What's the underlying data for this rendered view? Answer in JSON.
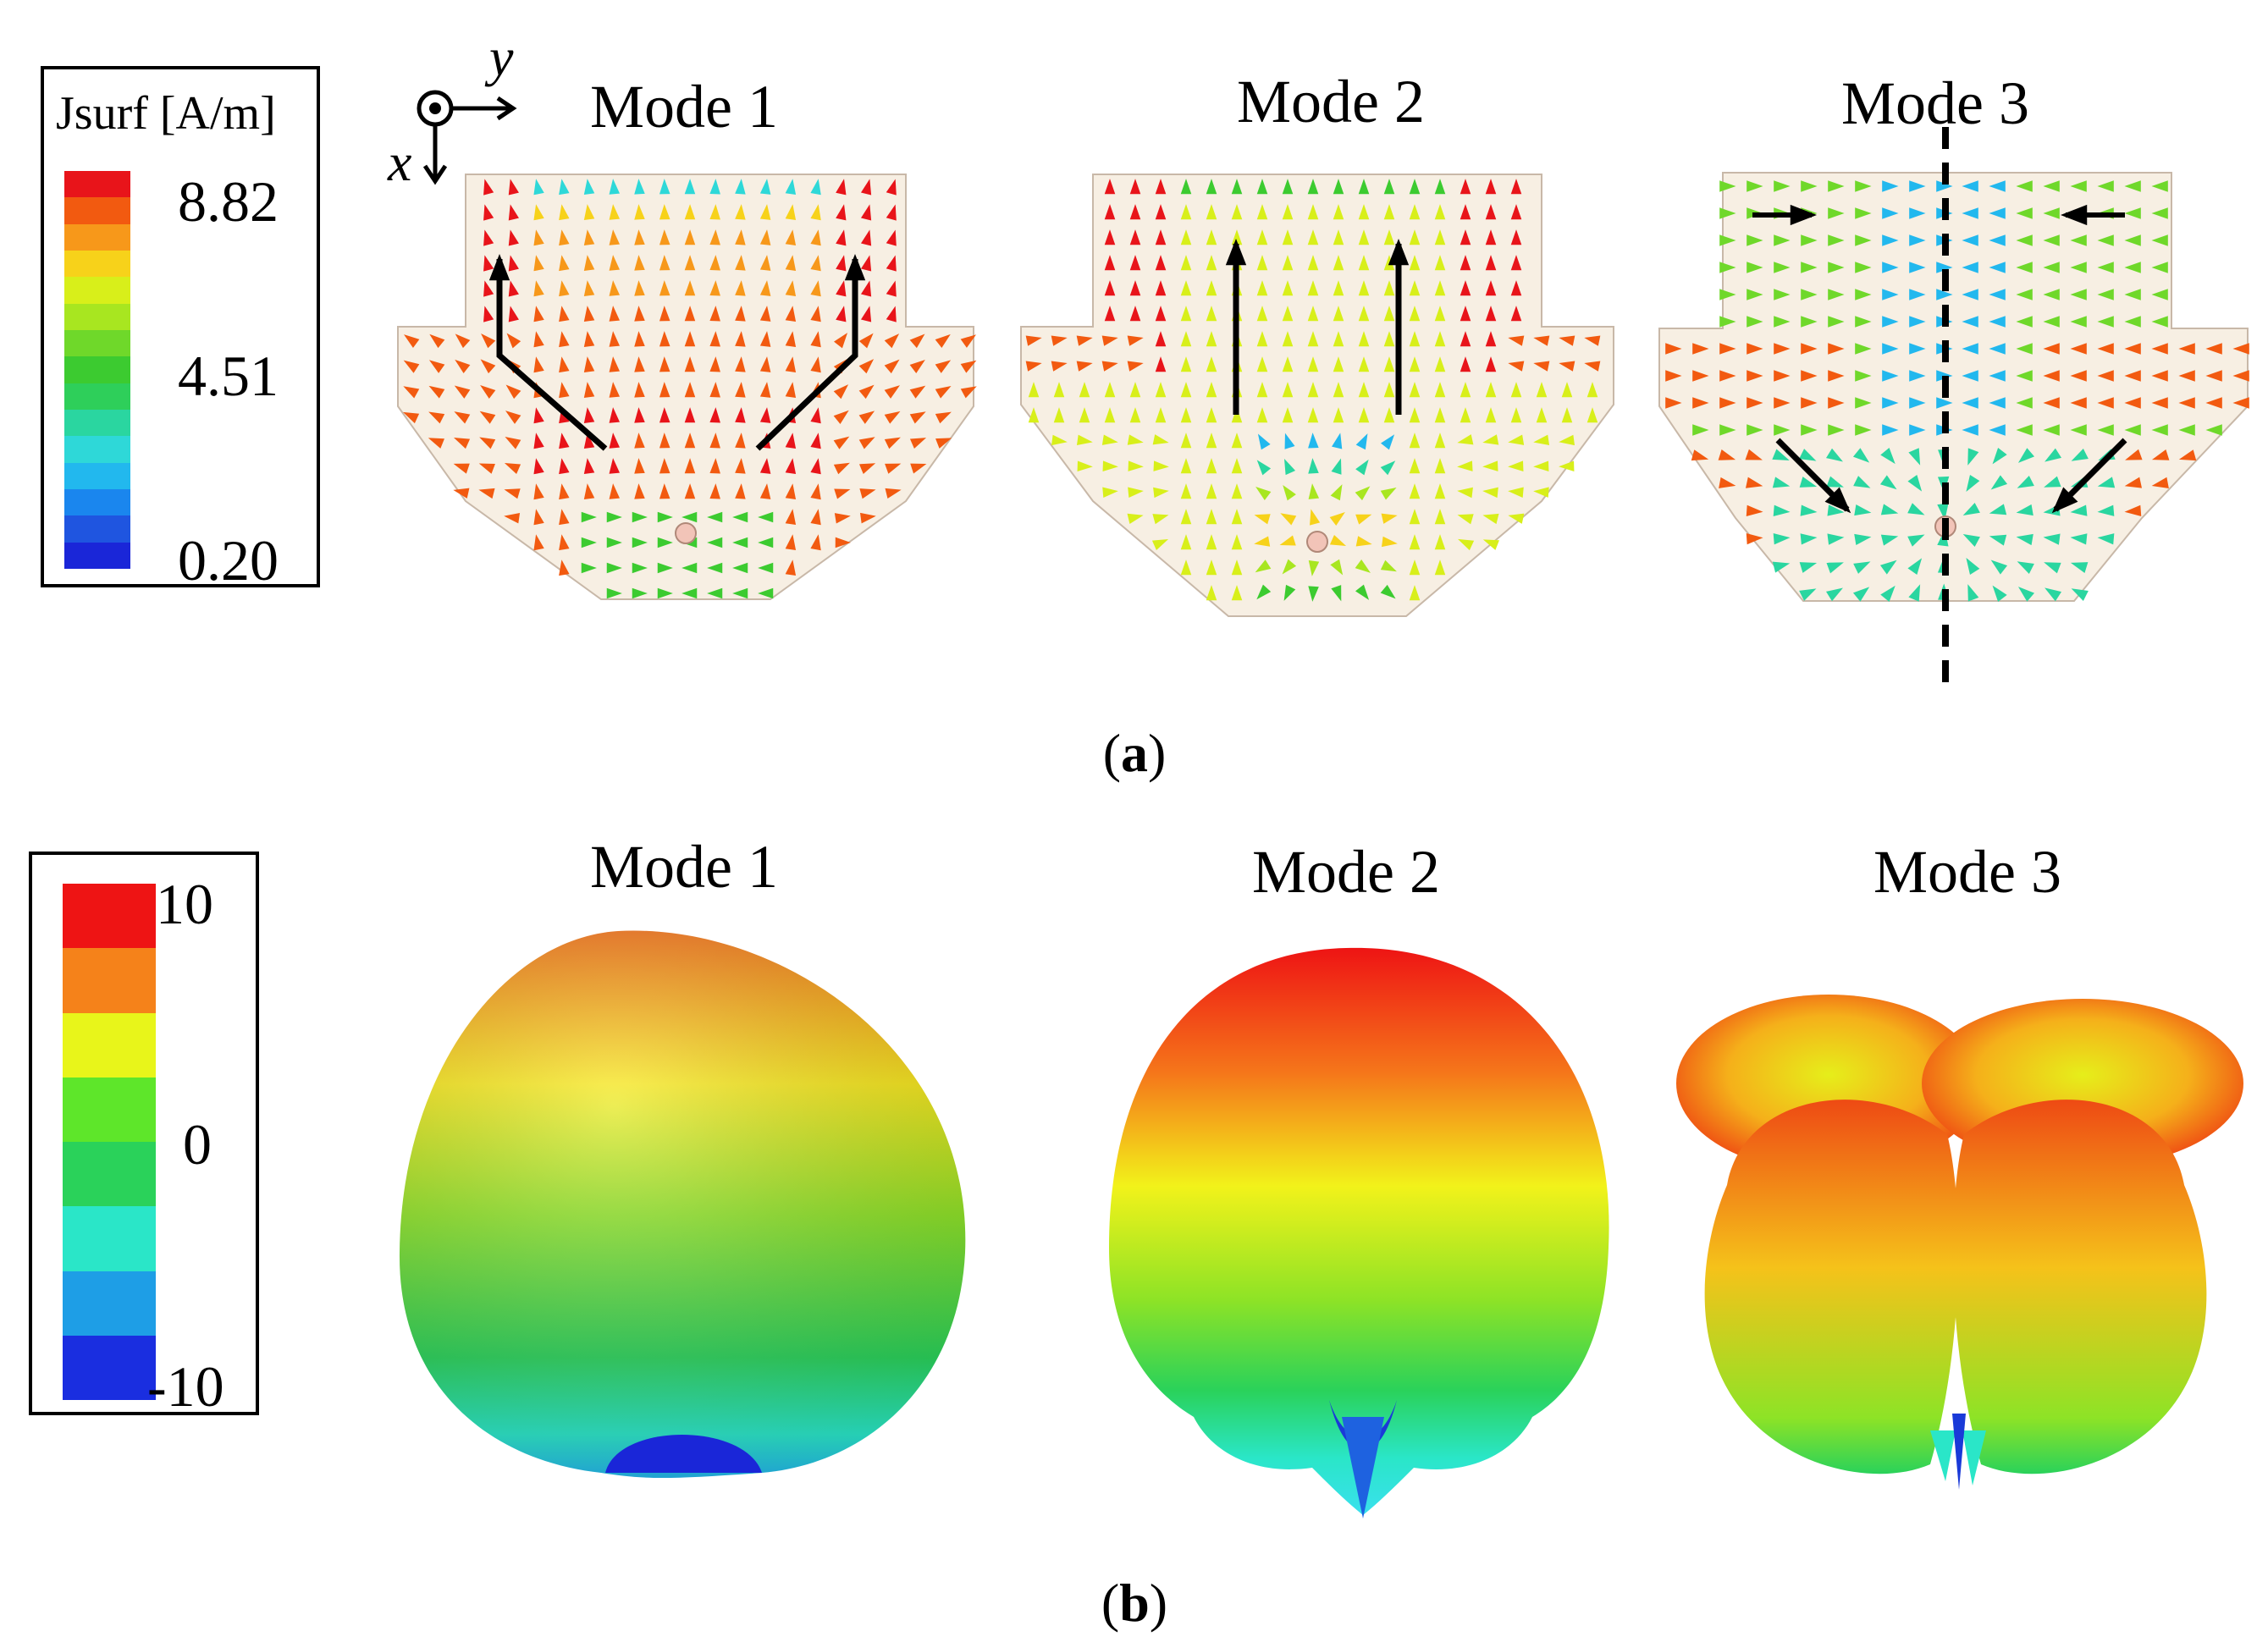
{
  "panel_a": {
    "caption_open": "(",
    "caption_letter": "a",
    "caption_close": ")",
    "legend": {
      "title": "Jsurf [A/m]",
      "max": "8.82",
      "mid": "4.51",
      "min": "0.20",
      "colors": [
        "#e8141a",
        "#f25a10",
        "#f7981a",
        "#f7d21a",
        "#d8ef1a",
        "#a8e620",
        "#6fd82a",
        "#3ccb30",
        "#2ecf5a",
        "#2ad6a0",
        "#2ed8d8",
        "#22b8ee",
        "#1a86ee",
        "#1f55e0",
        "#1a26d8"
      ]
    },
    "axes": {
      "x": "x",
      "y": "y"
    },
    "modes": [
      "Mode 1",
      "Mode 2",
      "Mode 3"
    ]
  },
  "panel_b": {
    "caption_open": "(",
    "caption_letter": "b",
    "caption_close": ")",
    "legend": {
      "max": "10",
      "mid": "0",
      "min": "-10",
      "colors": [
        "#ee1414",
        "#f5821a",
        "#e8f51a",
        "#5ee62a",
        "#2ad25a",
        "#2ae6c8",
        "#1e9ee6",
        "#1a2ee0"
      ]
    },
    "modes": [
      "Mode 1",
      "Mode 2",
      "Mode 3"
    ]
  }
}
